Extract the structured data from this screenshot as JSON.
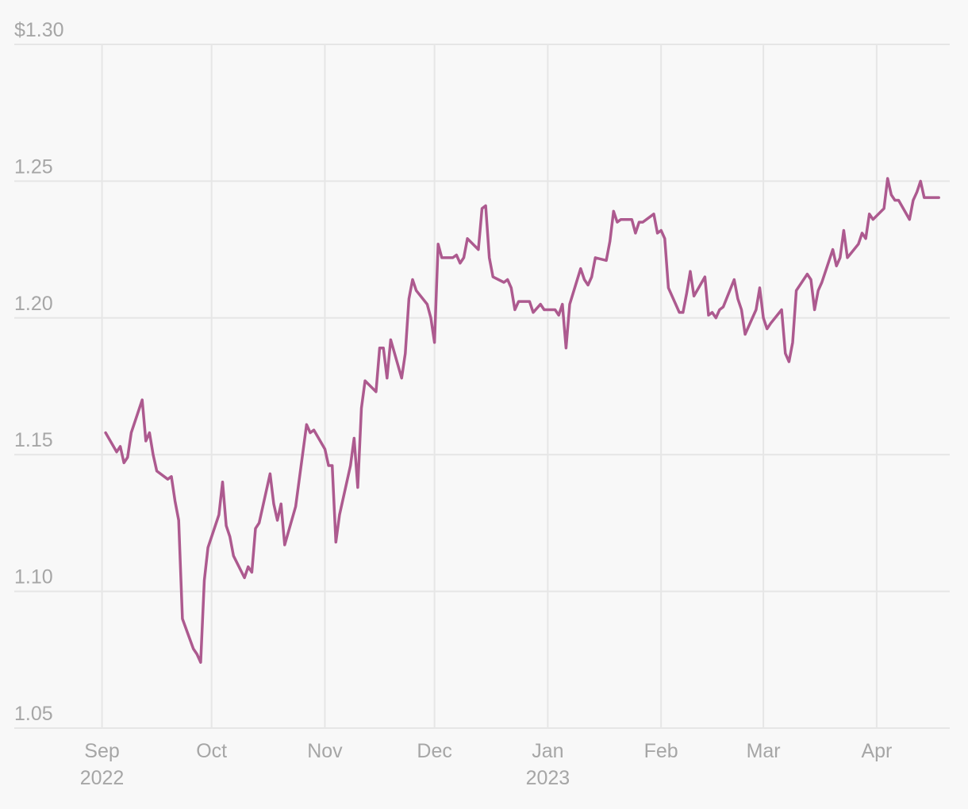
{
  "chart_data": {
    "type": "line",
    "title": "",
    "xlabel": "",
    "ylabel": "",
    "ylim": [
      1.05,
      1.3
    ],
    "y_ticks": [
      {
        "value": 1.3,
        "label": "$1.30"
      },
      {
        "value": 1.25,
        "label": "1.25"
      },
      {
        "value": 1.2,
        "label": "1.20"
      },
      {
        "value": 1.15,
        "label": "1.15"
      },
      {
        "value": 1.1,
        "label": "1.10"
      },
      {
        "value": 1.05,
        "label": "1.05"
      }
    ],
    "x_ticks": [
      {
        "date": "2022-09-01",
        "label": "Sep",
        "sublabel": "2022"
      },
      {
        "date": "2022-10-01",
        "label": "Oct",
        "sublabel": ""
      },
      {
        "date": "2022-11-01",
        "label": "Nov",
        "sublabel": ""
      },
      {
        "date": "2022-12-01",
        "label": "Dec",
        "sublabel": ""
      },
      {
        "date": "2023-01-01",
        "label": "Jan",
        "sublabel": "2023"
      },
      {
        "date": "2023-02-01",
        "label": "Feb",
        "sublabel": ""
      },
      {
        "date": "2023-03-01",
        "label": "Mar",
        "sublabel": ""
      },
      {
        "date": "2023-04-01",
        "label": "Apr",
        "sublabel": ""
      }
    ],
    "xlim": [
      "2022-08-08",
      "2023-04-21"
    ],
    "grid": true,
    "series": [
      {
        "color": "#ad5a8f",
        "points": [
          [
            "2022-09-02",
            1.158
          ],
          [
            "2022-09-05",
            1.151
          ],
          [
            "2022-09-06",
            1.153
          ],
          [
            "2022-09-07",
            1.147
          ],
          [
            "2022-09-08",
            1.149
          ],
          [
            "2022-09-09",
            1.158
          ],
          [
            "2022-09-12",
            1.17
          ],
          [
            "2022-09-13",
            1.155
          ],
          [
            "2022-09-14",
            1.158
          ],
          [
            "2022-09-15",
            1.15
          ],
          [
            "2022-09-16",
            1.144
          ],
          [
            "2022-09-19",
            1.141
          ],
          [
            "2022-09-20",
            1.142
          ],
          [
            "2022-09-21",
            1.133
          ],
          [
            "2022-09-22",
            1.126
          ],
          [
            "2022-09-23",
            1.09
          ],
          [
            "2022-09-26",
            1.079
          ],
          [
            "2022-09-27",
            1.077
          ],
          [
            "2022-09-28",
            1.074
          ],
          [
            "2022-09-29",
            1.104
          ],
          [
            "2022-09-30",
            1.116
          ],
          [
            "2022-10-03",
            1.128
          ],
          [
            "2022-10-04",
            1.14
          ],
          [
            "2022-10-05",
            1.124
          ],
          [
            "2022-10-06",
            1.12
          ],
          [
            "2022-10-07",
            1.113
          ],
          [
            "2022-10-10",
            1.105
          ],
          [
            "2022-10-11",
            1.109
          ],
          [
            "2022-10-12",
            1.107
          ],
          [
            "2022-10-13",
            1.123
          ],
          [
            "2022-10-14",
            1.125
          ],
          [
            "2022-10-17",
            1.143
          ],
          [
            "2022-10-18",
            1.132
          ],
          [
            "2022-10-19",
            1.126
          ],
          [
            "2022-10-20",
            1.132
          ],
          [
            "2022-10-21",
            1.117
          ],
          [
            "2022-10-24",
            1.131
          ],
          [
            "2022-10-27",
            1.161
          ],
          [
            "2022-10-28",
            1.158
          ],
          [
            "2022-10-29",
            1.159
          ],
          [
            "2022-11-01",
            1.152
          ],
          [
            "2022-11-02",
            1.146
          ],
          [
            "2022-11-03",
            1.146
          ],
          [
            "2022-11-04",
            1.118
          ],
          [
            "2022-11-05",
            1.128
          ],
          [
            "2022-11-08",
            1.146
          ],
          [
            "2022-11-09",
            1.156
          ],
          [
            "2022-11-10",
            1.138
          ],
          [
            "2022-11-11",
            1.167
          ],
          [
            "2022-11-12",
            1.177
          ],
          [
            "2022-11-15",
            1.173
          ],
          [
            "2022-11-16",
            1.189
          ],
          [
            "2022-11-17",
            1.189
          ],
          [
            "2022-11-18",
            1.178
          ],
          [
            "2022-11-19",
            1.192
          ],
          [
            "2022-11-22",
            1.178
          ],
          [
            "2022-11-23",
            1.187
          ],
          [
            "2022-11-24",
            1.207
          ],
          [
            "2022-11-25",
            1.214
          ],
          [
            "2022-11-26",
            1.21
          ],
          [
            "2022-11-29",
            1.205
          ],
          [
            "2022-11-30",
            1.2
          ],
          [
            "2022-12-01",
            1.191
          ],
          [
            "2022-12-02",
            1.227
          ],
          [
            "2022-12-03",
            1.222
          ],
          [
            "2022-12-06",
            1.222
          ],
          [
            "2022-12-07",
            1.223
          ],
          [
            "2022-12-08",
            1.22
          ],
          [
            "2022-12-09",
            1.222
          ],
          [
            "2022-12-10",
            1.229
          ],
          [
            "2022-12-13",
            1.225
          ],
          [
            "2022-12-14",
            1.24
          ],
          [
            "2022-12-15",
            1.241
          ],
          [
            "2022-12-16",
            1.222
          ],
          [
            "2022-12-17",
            1.215
          ],
          [
            "2022-12-20",
            1.213
          ],
          [
            "2022-12-21",
            1.214
          ],
          [
            "2022-12-22",
            1.211
          ],
          [
            "2022-12-23",
            1.203
          ],
          [
            "2022-12-24",
            1.206
          ],
          [
            "2022-12-27",
            1.206
          ],
          [
            "2022-12-28",
            1.202
          ],
          [
            "2022-12-30",
            1.205
          ],
          [
            "2022-12-31",
            1.203
          ],
          [
            "2023-01-03",
            1.203
          ],
          [
            "2023-01-04",
            1.201
          ],
          [
            "2023-01-05",
            1.205
          ],
          [
            "2023-01-06",
            1.189
          ],
          [
            "2023-01-07",
            1.205
          ],
          [
            "2023-01-10",
            1.218
          ],
          [
            "2023-01-11",
            1.214
          ],
          [
            "2023-01-12",
            1.212
          ],
          [
            "2023-01-13",
            1.215
          ],
          [
            "2023-01-14",
            1.222
          ],
          [
            "2023-01-17",
            1.221
          ],
          [
            "2023-01-18",
            1.228
          ],
          [
            "2023-01-19",
            1.239
          ],
          [
            "2023-01-20",
            1.235
          ],
          [
            "2023-01-21",
            1.236
          ],
          [
            "2023-01-24",
            1.236
          ],
          [
            "2023-01-25",
            1.231
          ],
          [
            "2023-01-26",
            1.235
          ],
          [
            "2023-01-27",
            1.235
          ],
          [
            "2023-01-30",
            1.238
          ],
          [
            "2023-01-31",
            1.231
          ],
          [
            "2023-02-01",
            1.232
          ],
          [
            "2023-02-02",
            1.229
          ],
          [
            "2023-02-03",
            1.211
          ],
          [
            "2023-02-06",
            1.202
          ],
          [
            "2023-02-07",
            1.202
          ],
          [
            "2023-02-08",
            1.209
          ],
          [
            "2023-02-09",
            1.217
          ],
          [
            "2023-02-10",
            1.208
          ],
          [
            "2023-02-13",
            1.215
          ],
          [
            "2023-02-14",
            1.201
          ],
          [
            "2023-02-15",
            1.202
          ],
          [
            "2023-02-16",
            1.2
          ],
          [
            "2023-02-17",
            1.203
          ],
          [
            "2023-02-18",
            1.204
          ],
          [
            "2023-02-21",
            1.214
          ],
          [
            "2023-02-22",
            1.207
          ],
          [
            "2023-02-23",
            1.203
          ],
          [
            "2023-02-24",
            1.194
          ],
          [
            "2023-02-27",
            1.203
          ],
          [
            "2023-02-28",
            1.211
          ],
          [
            "2023-03-01",
            1.2
          ],
          [
            "2023-03-02",
            1.196
          ],
          [
            "2023-03-03",
            1.198
          ],
          [
            "2023-03-06",
            1.203
          ],
          [
            "2023-03-07",
            1.187
          ],
          [
            "2023-03-08",
            1.184
          ],
          [
            "2023-03-09",
            1.191
          ],
          [
            "2023-03-10",
            1.21
          ],
          [
            "2023-03-13",
            1.216
          ],
          [
            "2023-03-14",
            1.214
          ],
          [
            "2023-03-15",
            1.203
          ],
          [
            "2023-03-16",
            1.21
          ],
          [
            "2023-03-17",
            1.213
          ],
          [
            "2023-03-20",
            1.225
          ],
          [
            "2023-03-21",
            1.219
          ],
          [
            "2023-03-22",
            1.222
          ],
          [
            "2023-03-23",
            1.232
          ],
          [
            "2023-03-24",
            1.222
          ],
          [
            "2023-03-27",
            1.227
          ],
          [
            "2023-03-28",
            1.231
          ],
          [
            "2023-03-29",
            1.229
          ],
          [
            "2023-03-30",
            1.238
          ],
          [
            "2023-03-31",
            1.236
          ],
          [
            "2023-04-03",
            1.24
          ],
          [
            "2023-04-04",
            1.251
          ],
          [
            "2023-04-05",
            1.245
          ],
          [
            "2023-04-06",
            1.243
          ],
          [
            "2023-04-07",
            1.243
          ],
          [
            "2023-04-10",
            1.236
          ],
          [
            "2023-04-11",
            1.243
          ],
          [
            "2023-04-12",
            1.246
          ],
          [
            "2023-04-13",
            1.25
          ],
          [
            "2023-04-14",
            1.244
          ],
          [
            "2023-04-17",
            1.244
          ],
          [
            "2023-04-18",
            1.244
          ]
        ]
      }
    ]
  }
}
